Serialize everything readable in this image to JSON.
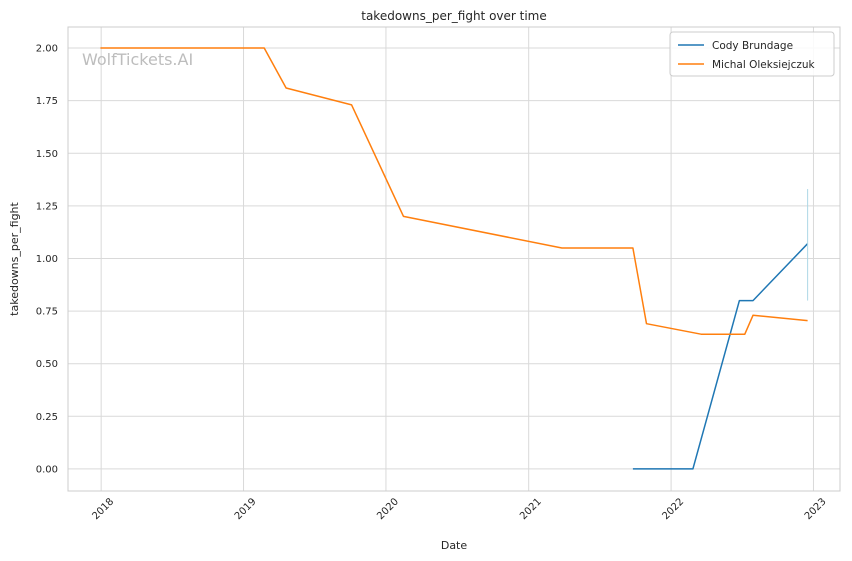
{
  "chart_data": {
    "type": "line",
    "title": "takedowns_per_fight over time",
    "xlabel": "Date",
    "ylabel": "takedowns_per_fight",
    "watermark": "WolfTickets.AI",
    "xlim": [
      "2017-10-08",
      "2023-03-10"
    ],
    "ylim": [
      -0.105,
      2.1
    ],
    "x_ticks": [
      "2018",
      "2019",
      "2020",
      "2021",
      "2022",
      "2023"
    ],
    "y_ticks": [
      "0.00",
      "0.25",
      "0.50",
      "0.75",
      "1.00",
      "1.25",
      "1.50",
      "1.75",
      "2.00"
    ],
    "grid": true,
    "legend_position": "top-right",
    "series": [
      {
        "name": "Cody Brundage",
        "color": "#1f77b4",
        "points": [
          {
            "x": "2021-09-25",
            "y": 0.0
          },
          {
            "x": "2022-02-26",
            "y": 0.0
          },
          {
            "x": "2022-06-25",
            "y": 0.8
          },
          {
            "x": "2022-07-30",
            "y": 0.8
          },
          {
            "x": "2022-12-17",
            "y": 1.07
          }
        ],
        "error_bar": {
          "x": "2022-12-17",
          "low": 0.8,
          "high": 1.33,
          "color": "#add8e6"
        }
      },
      {
        "name": "Michal Oleksiejczuk",
        "color": "#ff7f0e",
        "points": [
          {
            "x": "2017-12-30",
            "y": 2.0
          },
          {
            "x": "2019-02-23",
            "y": 2.0
          },
          {
            "x": "2019-04-20",
            "y": 1.81
          },
          {
            "x": "2019-10-05",
            "y": 1.73
          },
          {
            "x": "2020-02-15",
            "y": 1.2
          },
          {
            "x": "2021-03-27",
            "y": 1.05
          },
          {
            "x": "2021-09-25",
            "y": 1.05
          },
          {
            "x": "2021-10-30",
            "y": 0.69
          },
          {
            "x": "2022-03-19",
            "y": 0.64
          },
          {
            "x": "2022-07-09",
            "y": 0.64
          },
          {
            "x": "2022-07-30",
            "y": 0.73
          },
          {
            "x": "2022-12-17",
            "y": 0.705
          }
        ]
      }
    ]
  }
}
